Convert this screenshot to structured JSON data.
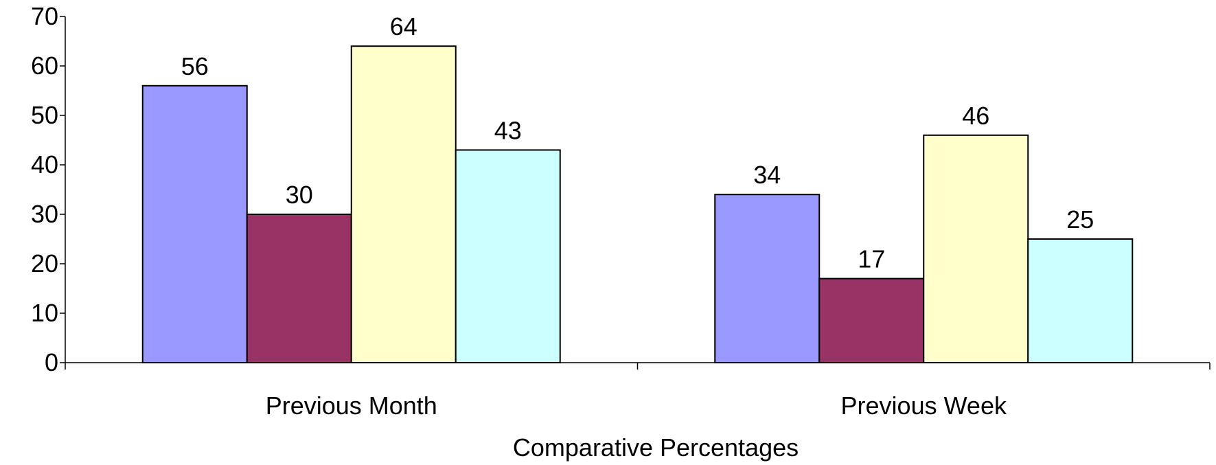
{
  "chart_data": {
    "type": "bar",
    "categories": [
      "Previous Month",
      "Previous Week"
    ],
    "series": [
      {
        "values": [
          56,
          34
        ],
        "color": "#9999ff"
      },
      {
        "values": [
          30,
          17
        ],
        "color": "#993366"
      },
      {
        "values": [
          64,
          46
        ],
        "color": "#ffffcc"
      },
      {
        "values": [
          43,
          25
        ],
        "color": "#ccffff"
      }
    ],
    "title": "",
    "xlabel": "Comparative Percentages",
    "ylabel": "",
    "ylim": [
      0,
      70
    ],
    "yticks": [
      0,
      10,
      20,
      30,
      40,
      50,
      60,
      70
    ],
    "grid": false,
    "legend": "none",
    "data_labels": true
  }
}
